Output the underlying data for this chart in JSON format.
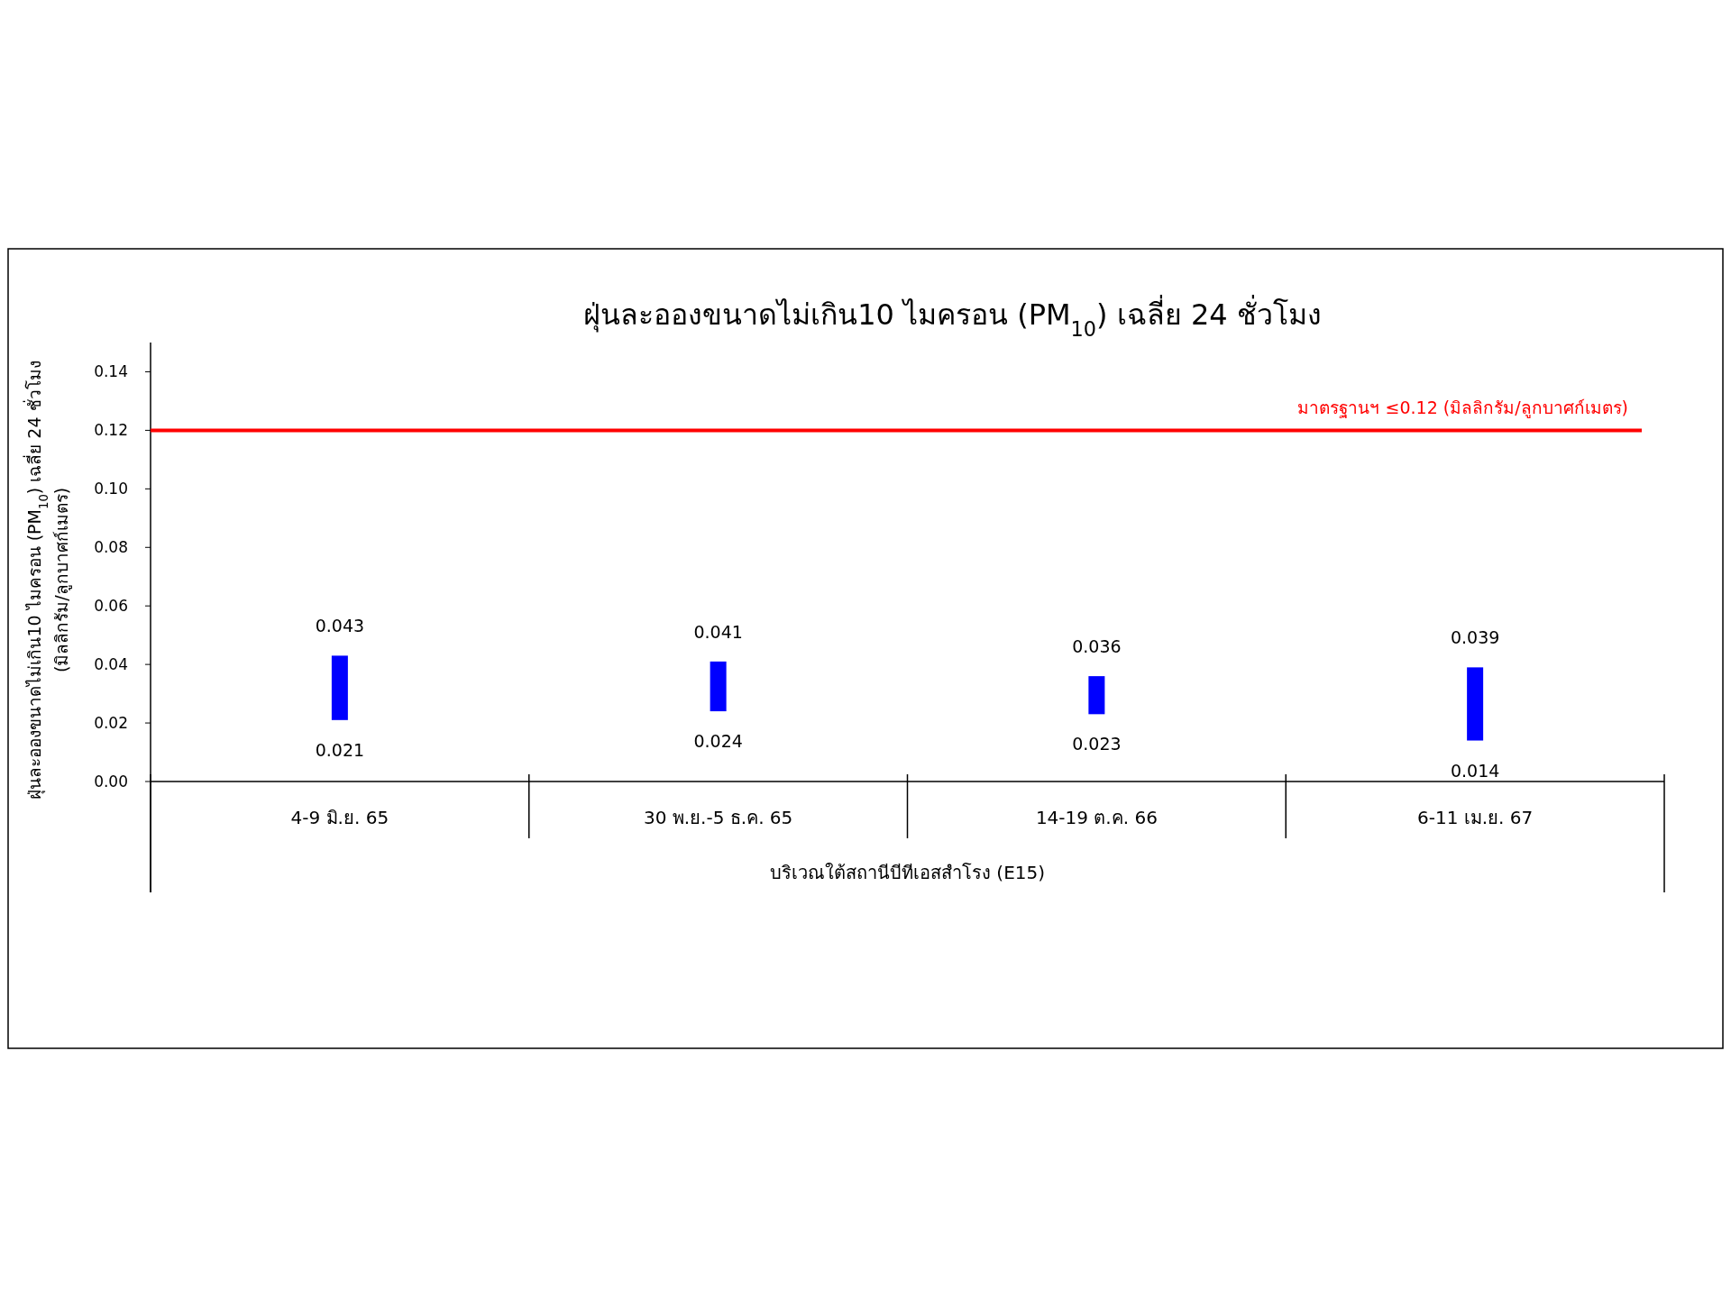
{
  "chart_data": {
    "type": "bar",
    "title": "ฝุ่นละอองขนาดไม่เกิน10 ไมครอน (PM$_{10}$) เฉลี่ย 24 ชั่วโมง",
    "xlabel": "บริเวณใต้สถานีบีทีเอสสำโรง (E15)",
    "ylabel": "ฝุ่นละอองขนาดไม่เกิน10 ไมครอน (PM$_{10}$) เฉลี่ย 24 ชั่วโมง\n(มิลลิกรัม/ลูกบาศก์เมตร)",
    "categories": [
      "4-9 มิ.ย. 65",
      "30 พ.ย.-5 ธ.ค. 65",
      "14-19 ต.ค. 66",
      "6-11 เม.ย. 67"
    ],
    "base": [
      0.021,
      0.024,
      0.023,
      0.014
    ],
    "values": [
      0.022,
      0.017,
      0.013,
      0.025
    ],
    "color": "#0000ff",
    "ylim": [
      0,
      0.15
    ],
    "yticks": [
      {
        "value": 0,
        "label": "0.00"
      },
      {
        "value": 0.02,
        "label": "0.02"
      },
      {
        "value": 0.04,
        "label": "0.04"
      },
      {
        "value": 0.06,
        "label": "0.06"
      },
      {
        "value": 0.08,
        "label": "0.08"
      },
      {
        "value": 0.1,
        "label": "0.10"
      },
      {
        "value": 0.12,
        "label": "0.12"
      },
      {
        "value": 0.14,
        "label": "0.14"
      }
    ],
    "ref_lines": [
      {
        "axis": "y",
        "value": 0.12,
        "label": "มาตรฐานฯ ≤0.12 (มิลลิกรัม/ลูกบาศก์เมตร)",
        "color": "#ff0000"
      }
    ],
    "annotations": [
      {
        "text": "0.043",
        "x": "4-9 มิ.ย. 65",
        "y": 0.043
      },
      {
        "text": "0.021",
        "x": "4-9 มิ.ย. 65",
        "y": 0.021
      },
      {
        "text": "0.041",
        "x": "30 พ.ย.-5 ธ.ค. 65",
        "y": 0.041
      },
      {
        "text": "0.024",
        "x": "30 พ.ย.-5 ธ.ค. 65",
        "y": 0.024
      },
      {
        "text": "0.036",
        "x": "14-19 ต.ค. 66",
        "y": 0.036
      },
      {
        "text": "0.023",
        "x": "14-19 ต.ค. 66",
        "y": 0.023
      },
      {
        "text": "0.039",
        "x": "6-11 เม.ย. 67",
        "y": 0.039
      },
      {
        "text": "0.014",
        "x": "6-11 เม.ย. 67",
        "y": 0.014
      }
    ]
  }
}
